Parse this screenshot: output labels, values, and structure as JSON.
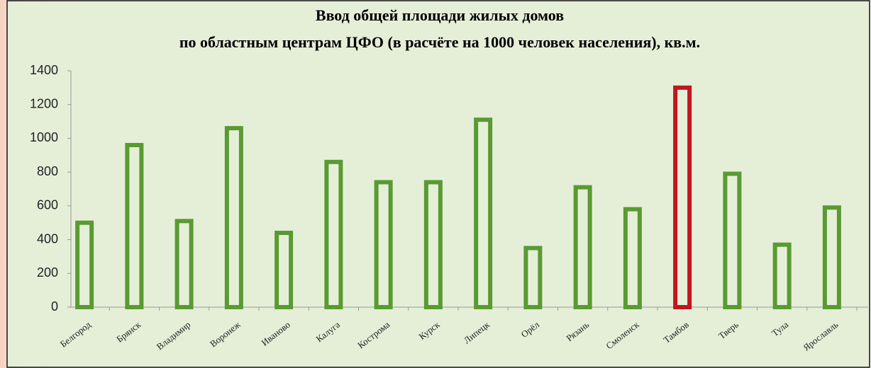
{
  "chart_data": {
    "type": "bar",
    "title": [
      "Ввод общей площади жилых домов",
      "по областным центрам ЦФО  (в расчёте на 1000 человек населения), кв.м."
    ],
    "categories": [
      "Белгород",
      "Брянск",
      "Владимир",
      "Воронеж",
      "Иваново",
      "Калуга",
      "Кострома",
      "Курск",
      "Липецк",
      "Орёл",
      "Рязань",
      "Смоленск",
      "Тамбов",
      "Тверь",
      "Тула",
      "Ярославль"
    ],
    "values": [
      500,
      960,
      510,
      1060,
      440,
      860,
      740,
      740,
      1110,
      350,
      710,
      580,
      1300,
      790,
      370,
      590
    ],
    "colors": [
      "#5a9a32",
      "#5a9a32",
      "#5a9a32",
      "#5a9a32",
      "#5a9a32",
      "#5a9a32",
      "#5a9a32",
      "#5a9a32",
      "#5a9a32",
      "#5a9a32",
      "#5a9a32",
      "#5a9a32",
      "#c0161e",
      "#5a9a32",
      "#5a9a32",
      "#5a9a32"
    ],
    "ylim": [
      0,
      1400
    ],
    "yticks": [
      0,
      200,
      400,
      600,
      800,
      1000,
      1200,
      1400
    ],
    "grid": false
  }
}
